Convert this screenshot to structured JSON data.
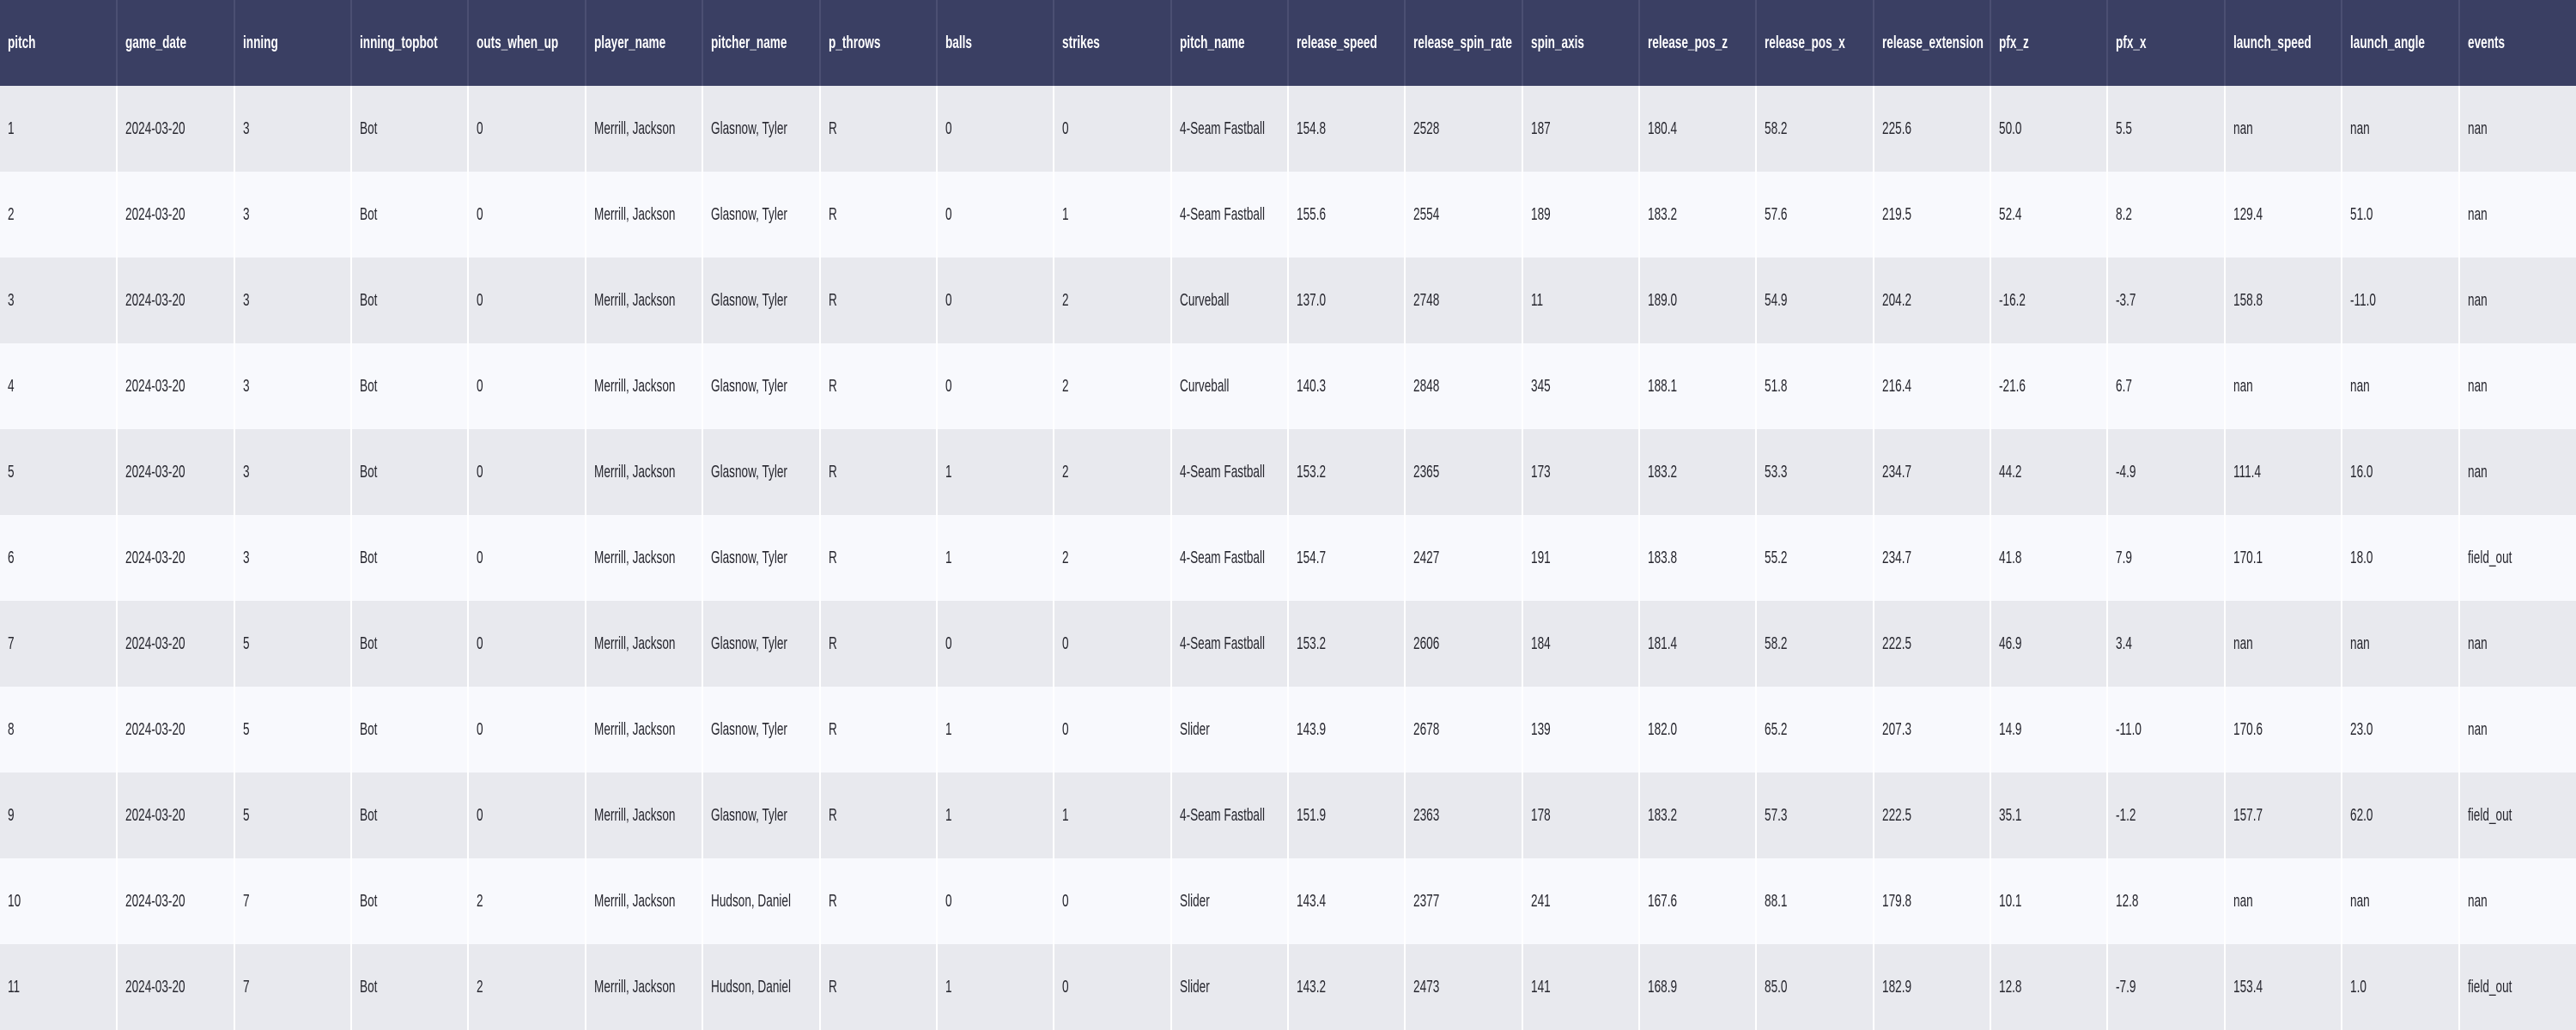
{
  "colors": {
    "header_bg": "#3a3f63",
    "header_separator": "#4b4f72",
    "header_text": "#ffffff",
    "row_odd_bg": "#e8e9ee",
    "row_even_bg": "#f8f9fd",
    "cell_text": "#26262e"
  },
  "table": {
    "columns": [
      "pitch",
      "game_date",
      "inning",
      "inning_topbot",
      "outs_when_up",
      "player_name",
      "pitcher_name",
      "p_throws",
      "balls",
      "strikes",
      "pitch_name",
      "release_speed",
      "release_spin_rate",
      "spin_axis",
      "release_pos_z",
      "release_pos_x",
      "release_extension",
      "pfx_z",
      "pfx_x",
      "launch_speed",
      "launch_angle",
      "events"
    ],
    "rows": [
      [
        "1",
        "2024-03-20",
        "3",
        "Bot",
        "0",
        "Merrill, Jackson",
        "Glasnow, Tyler",
        "R",
        "0",
        "0",
        "4-Seam Fastball",
        "154.8",
        "2528",
        "187",
        "180.4",
        "58.2",
        "225.6",
        "50.0",
        "5.5",
        "nan",
        "nan",
        "nan"
      ],
      [
        "2",
        "2024-03-20",
        "3",
        "Bot",
        "0",
        "Merrill, Jackson",
        "Glasnow, Tyler",
        "R",
        "0",
        "1",
        "4-Seam Fastball",
        "155.6",
        "2554",
        "189",
        "183.2",
        "57.6",
        "219.5",
        "52.4",
        "8.2",
        "129.4",
        "51.0",
        "nan"
      ],
      [
        "3",
        "2024-03-20",
        "3",
        "Bot",
        "0",
        "Merrill, Jackson",
        "Glasnow, Tyler",
        "R",
        "0",
        "2",
        "Curveball",
        "137.0",
        "2748",
        "11",
        "189.0",
        "54.9",
        "204.2",
        "-16.2",
        "-3.7",
        "158.8",
        "-11.0",
        "nan"
      ],
      [
        "4",
        "2024-03-20",
        "3",
        "Bot",
        "0",
        "Merrill, Jackson",
        "Glasnow, Tyler",
        "R",
        "0",
        "2",
        "Curveball",
        "140.3",
        "2848",
        "345",
        "188.1",
        "51.8",
        "216.4",
        "-21.6",
        "6.7",
        "nan",
        "nan",
        "nan"
      ],
      [
        "5",
        "2024-03-20",
        "3",
        "Bot",
        "0",
        "Merrill, Jackson",
        "Glasnow, Tyler",
        "R",
        "1",
        "2",
        "4-Seam Fastball",
        "153.2",
        "2365",
        "173",
        "183.2",
        "53.3",
        "234.7",
        "44.2",
        "-4.9",
        "111.4",
        "16.0",
        "nan"
      ],
      [
        "6",
        "2024-03-20",
        "3",
        "Bot",
        "0",
        "Merrill, Jackson",
        "Glasnow, Tyler",
        "R",
        "1",
        "2",
        "4-Seam Fastball",
        "154.7",
        "2427",
        "191",
        "183.8",
        "55.2",
        "234.7",
        "41.8",
        "7.9",
        "170.1",
        "18.0",
        "field_out"
      ],
      [
        "7",
        "2024-03-20",
        "5",
        "Bot",
        "0",
        "Merrill, Jackson",
        "Glasnow, Tyler",
        "R",
        "0",
        "0",
        "4-Seam Fastball",
        "153.2",
        "2606",
        "184",
        "181.4",
        "58.2",
        "222.5",
        "46.9",
        "3.4",
        "nan",
        "nan",
        "nan"
      ],
      [
        "8",
        "2024-03-20",
        "5",
        "Bot",
        "0",
        "Merrill, Jackson",
        "Glasnow, Tyler",
        "R",
        "1",
        "0",
        "Slider",
        "143.9",
        "2678",
        "139",
        "182.0",
        "65.2",
        "207.3",
        "14.9",
        "-11.0",
        "170.6",
        "23.0",
        "nan"
      ],
      [
        "9",
        "2024-03-20",
        "5",
        "Bot",
        "0",
        "Merrill, Jackson",
        "Glasnow, Tyler",
        "R",
        "1",
        "1",
        "4-Seam Fastball",
        "151.9",
        "2363",
        "178",
        "183.2",
        "57.3",
        "222.5",
        "35.1",
        "-1.2",
        "157.7",
        "62.0",
        "field_out"
      ],
      [
        "10",
        "2024-03-20",
        "7",
        "Bot",
        "2",
        "Merrill, Jackson",
        "Hudson, Daniel",
        "R",
        "0",
        "0",
        "Slider",
        "143.4",
        "2377",
        "241",
        "167.6",
        "88.1",
        "179.8",
        "10.1",
        "12.8",
        "nan",
        "nan",
        "nan"
      ],
      [
        "11",
        "2024-03-20",
        "7",
        "Bot",
        "2",
        "Merrill, Jackson",
        "Hudson, Daniel",
        "R",
        "1",
        "0",
        "Slider",
        "143.2",
        "2473",
        "141",
        "168.9",
        "85.0",
        "182.9",
        "12.8",
        "-7.9",
        "153.4",
        "1.0",
        "field_out"
      ]
    ]
  }
}
